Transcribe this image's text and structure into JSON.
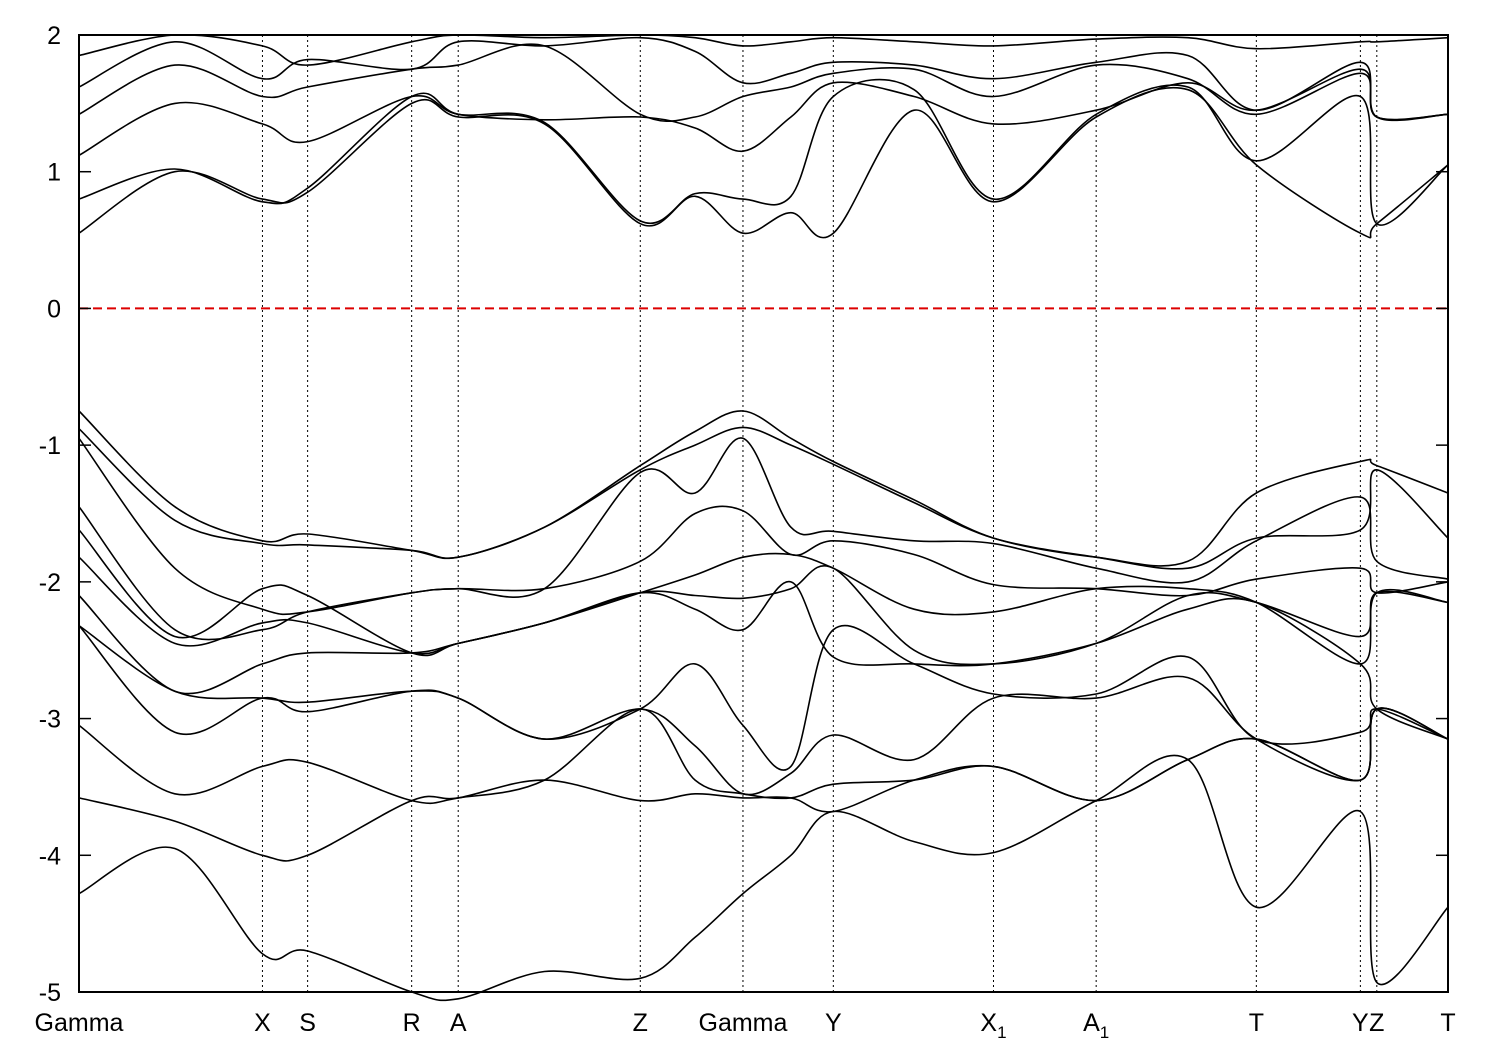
{
  "chart_data": {
    "type": "line",
    "title": "",
    "xlabel": "",
    "ylabel": "",
    "ylim": [
      -5,
      2
    ],
    "yticks": [
      -5,
      -4,
      -3,
      -2,
      -1,
      0,
      1,
      2
    ],
    "grid": "vertical dotted lines at high-symmetry points",
    "fermi_level": {
      "y": 0,
      "color": "#dd0000",
      "style": "dashed"
    },
    "line_color": "#000000",
    "xlim": [
      0,
      100
    ],
    "kpoints": [
      {
        "label": "Gamma",
        "sub": "",
        "x": 0
      },
      {
        "label": "X",
        "sub": "",
        "x": 13.4
      },
      {
        "label": "S",
        "sub": "",
        "x": 16.7
      },
      {
        "label": "R",
        "sub": "",
        "x": 24.3
      },
      {
        "label": "A",
        "sub": "",
        "x": 27.7
      },
      {
        "label": "Z",
        "sub": "",
        "x": 41.0
      },
      {
        "label": "Gamma",
        "sub": "",
        "x": 48.5
      },
      {
        "label": "Y",
        "sub": "",
        "x": 55.1
      },
      {
        "label": "X",
        "sub": "1",
        "x": 66.8
      },
      {
        "label": "A",
        "sub": "1",
        "x": 74.3
      },
      {
        "label": "T",
        "sub": "",
        "x": 86.0
      },
      {
        "label": "Y",
        "sub": "",
        "x": 93.6
      },
      {
        "label": "Z",
        "sub": "",
        "x": 94.8
      },
      {
        "label": "T",
        "sub": "",
        "x": 100
      }
    ],
    "series": [
      {
        "x": [
          0,
          7,
          13.4,
          16.7,
          24.3,
          27.7,
          34,
          41.0,
          45,
          48.5,
          52,
          55.1,
          61,
          66.8,
          74.3,
          81,
          86.0,
          93.6,
          94.8,
          100
        ],
        "y": [
          0.55,
          1.0,
          0.8,
          0.85,
          1.5,
          1.4,
          1.35,
          0.62,
          0.82,
          0.55,
          0.7,
          0.55,
          1.45,
          0.78,
          1.4,
          1.6,
          1.05,
          0.55,
          0.62,
          1.05
        ]
      },
      {
        "x": [
          0,
          7,
          13.4,
          16.7,
          24.3,
          27.7,
          34,
          41.0,
          45,
          48.5,
          52,
          55.1,
          61,
          66.8,
          74.3,
          81,
          86.0,
          93.6,
          94.8,
          100
        ],
        "y": [
          0.8,
          1.02,
          0.78,
          0.88,
          1.55,
          1.42,
          1.36,
          0.64,
          0.84,
          0.8,
          0.82,
          1.55,
          1.6,
          0.8,
          1.42,
          1.62,
          1.08,
          1.55,
          0.62,
          1.05
        ]
      },
      {
        "x": [
          0,
          7,
          13.4,
          16.7,
          24.3,
          27.7,
          34,
          41.0,
          45,
          48.5,
          52,
          55.1,
          61,
          66.8,
          74.3,
          81,
          86.0,
          93.6,
          94.8,
          100
        ],
        "y": [
          1.12,
          1.5,
          1.35,
          1.22,
          1.55,
          1.42,
          1.38,
          1.4,
          1.32,
          1.15,
          1.4,
          1.65,
          1.55,
          1.35,
          1.45,
          1.65,
          1.45,
          1.75,
          1.4,
          1.42
        ]
      },
      {
        "x": [
          0,
          7,
          13.4,
          16.7,
          24.3,
          27.7,
          34,
          41.0,
          45,
          48.5,
          52,
          55.1,
          61,
          66.8,
          74.3,
          81,
          86.0,
          93.6,
          94.8,
          100
        ],
        "y": [
          1.42,
          1.78,
          1.55,
          1.62,
          1.75,
          1.78,
          1.92,
          1.42,
          1.4,
          1.55,
          1.62,
          1.72,
          1.75,
          1.55,
          1.78,
          1.68,
          1.42,
          1.72,
          1.4,
          1.42
        ]
      },
      {
        "x": [
          0,
          7,
          13.4,
          16.7,
          24.3,
          27.7,
          34,
          41.0,
          45,
          48.5,
          52,
          55.1,
          61,
          66.8,
          74.3,
          81,
          86.0,
          93.6,
          94.8,
          100
        ],
        "y": [
          1.62,
          1.95,
          1.68,
          1.82,
          1.75,
          1.95,
          1.92,
          1.98,
          1.88,
          1.65,
          1.72,
          1.8,
          1.78,
          1.68,
          1.8,
          1.85,
          1.45,
          1.8,
          1.4,
          1.42
        ]
      },
      {
        "x": [
          0,
          7,
          13.4,
          16.7,
          24.3,
          27.7,
          34,
          41.0,
          45,
          48.5,
          52,
          55.1,
          61,
          66.8,
          74.3,
          81,
          86.0,
          93.6,
          94.8,
          100
        ],
        "y": [
          1.85,
          2.0,
          1.92,
          1.78,
          1.95,
          2.0,
          1.98,
          2.0,
          1.98,
          1.92,
          1.95,
          1.98,
          1.95,
          1.92,
          1.97,
          1.98,
          1.9,
          1.95,
          1.95,
          1.98
        ]
      },
      {
        "x": [
          0,
          7,
          13.4,
          16.7,
          24.3,
          27.7,
          34,
          41.0,
          45,
          48.5,
          52,
          55.1,
          61,
          66.8,
          74.3,
          81,
          86.0,
          93.6,
          94.8,
          100
        ],
        "y": [
          -0.75,
          -1.45,
          -1.7,
          -1.65,
          -1.77,
          -1.82,
          -1.6,
          -1.15,
          -0.9,
          -0.75,
          -0.95,
          -1.12,
          -1.4,
          -1.68,
          -1.82,
          -1.85,
          -1.35,
          -1.12,
          -1.15,
          -1.35
        ]
      },
      {
        "x": [
          0,
          7,
          13.4,
          16.7,
          24.3,
          27.7,
          34,
          41.0,
          45,
          48.5,
          52,
          55.1,
          61,
          66.8,
          74.3,
          81,
          86.0,
          93.6,
          94.8,
          100
        ],
        "y": [
          -0.88,
          -1.55,
          -1.72,
          -1.73,
          -1.77,
          -1.82,
          -1.6,
          -1.18,
          -1.0,
          -0.87,
          -1.0,
          -1.14,
          -1.42,
          -1.68,
          -1.82,
          -1.9,
          -1.68,
          -1.62,
          -1.18,
          -1.68
        ]
      },
      {
        "x": [
          0,
          7,
          13.4,
          16.7,
          24.3,
          27.7,
          34,
          41.0,
          45,
          48.5,
          52,
          55.1,
          61,
          66.8,
          74.3,
          81,
          86.0,
          93.6,
          94.8,
          100
        ],
        "y": [
          -0.95,
          -1.9,
          -2.2,
          -2.22,
          -2.08,
          -2.05,
          -2.05,
          -1.2,
          -1.35,
          -0.95,
          -1.6,
          -1.63,
          -1.7,
          -1.72,
          -1.9,
          -2.0,
          -1.7,
          -1.38,
          -1.85,
          -1.98
        ]
      },
      {
        "x": [
          0,
          7,
          13.4,
          16.7,
          24.3,
          27.7,
          34,
          41.0,
          45,
          48.5,
          52,
          55.1,
          61,
          66.8,
          74.3,
          81,
          86.0,
          93.6,
          94.8,
          100
        ],
        "y": [
          -1.45,
          -2.35,
          -2.35,
          -2.22,
          -2.08,
          -2.05,
          -2.05,
          -1.85,
          -1.5,
          -1.48,
          -1.8,
          -1.7,
          -1.8,
          -2.02,
          -2.05,
          -2.1,
          -1.98,
          -1.9,
          -2.08,
          -2.0
        ]
      },
      {
        "x": [
          0,
          7,
          13.4,
          16.7,
          24.3,
          27.7,
          34,
          41.0,
          45,
          48.5,
          52,
          55.1,
          61,
          66.8,
          74.3,
          81,
          86.0,
          93.6,
          94.8,
          100
        ],
        "y": [
          -1.62,
          -2.4,
          -2.05,
          -2.1,
          -2.52,
          -2.45,
          -2.3,
          -2.08,
          -1.95,
          -1.82,
          -1.8,
          -1.9,
          -2.2,
          -2.22,
          -2.05,
          -2.05,
          -2.15,
          -2.6,
          -2.08,
          -2.15
        ]
      },
      {
        "x": [
          0,
          7,
          13.4,
          16.7,
          24.3,
          27.7,
          34,
          41.0,
          45,
          48.5,
          52,
          55.1,
          61,
          66.8,
          74.3,
          81,
          86.0,
          93.6,
          94.8,
          100
        ],
        "y": [
          -1.82,
          -2.45,
          -2.3,
          -2.3,
          -2.52,
          -2.45,
          -2.3,
          -2.08,
          -2.1,
          -2.12,
          -2.05,
          -1.9,
          -2.5,
          -2.6,
          -2.45,
          -2.1,
          -2.15,
          -2.4,
          -2.08,
          -2.15
        ]
      },
      {
        "x": [
          0,
          7,
          13.4,
          16.7,
          24.3,
          27.7,
          34,
          41.0,
          45,
          48.5,
          52,
          55.1,
          61,
          66.8,
          74.3,
          81,
          86.0,
          93.6,
          94.8,
          100
        ],
        "y": [
          -2.1,
          -2.8,
          -2.6,
          -2.52,
          -2.52,
          -2.45,
          -2.3,
          -2.08,
          -2.2,
          -2.35,
          -2.0,
          -2.55,
          -2.6,
          -2.6,
          -2.45,
          -2.2,
          -2.15,
          -2.6,
          -2.93,
          -3.15
        ]
      },
      {
        "x": [
          0,
          7,
          13.4,
          16.7,
          24.3,
          27.7,
          34,
          41.0,
          45,
          48.5,
          52,
          55.1,
          61,
          66.8,
          74.3,
          81,
          86.0,
          93.6,
          94.8,
          100
        ],
        "y": [
          -2.32,
          -2.8,
          -2.85,
          -2.88,
          -2.8,
          -2.85,
          -3.15,
          -2.93,
          -2.6,
          -3.05,
          -3.35,
          -2.35,
          -2.6,
          -2.82,
          -2.82,
          -2.55,
          -3.15,
          -3.1,
          -2.93,
          -3.15
        ]
      },
      {
        "x": [
          0,
          7,
          13.4,
          16.7,
          24.3,
          27.7,
          34,
          41.0,
          45,
          48.5,
          52,
          55.1,
          61,
          66.8,
          74.3,
          81,
          86.0,
          93.6,
          94.8,
          100
        ],
        "y": [
          -2.32,
          -3.1,
          -2.85,
          -2.95,
          -2.8,
          -2.85,
          -3.15,
          -2.93,
          -3.2,
          -3.55,
          -3.4,
          -3.12,
          -3.3,
          -2.85,
          -2.85,
          -2.7,
          -3.15,
          -3.45,
          -2.93,
          -3.15
        ]
      },
      {
        "x": [
          0,
          7,
          13.4,
          16.7,
          24.3,
          27.7,
          34,
          41.0,
          45,
          48.5,
          52,
          55.1,
          61,
          66.8,
          74.3,
          81,
          86.0,
          93.6,
          94.8,
          100
        ],
        "y": [
          -3.05,
          -3.55,
          -3.35,
          -3.32,
          -3.6,
          -3.58,
          -3.45,
          -2.93,
          -3.45,
          -3.55,
          -3.58,
          -3.48,
          -3.45,
          -3.35,
          -3.6,
          -3.3,
          -3.15,
          -3.45,
          -2.93,
          -3.15
        ]
      },
      {
        "x": [
          0,
          7,
          13.4,
          16.7,
          24.3,
          27.7,
          34,
          41.0,
          45,
          48.5,
          52,
          55.1,
          61,
          66.8,
          74.3,
          81,
          86.0,
          93.6,
          94.8,
          100
        ],
        "y": [
          -3.58,
          -3.75,
          -4.0,
          -4.0,
          -3.6,
          -3.58,
          -3.45,
          -3.6,
          -3.55,
          -3.58,
          -3.58,
          -3.68,
          -3.45,
          -3.35,
          -3.6,
          -3.3,
          -3.15,
          -3.45,
          -2.93,
          -3.15
        ]
      },
      {
        "x": [
          0,
          7,
          13.4,
          16.7,
          24.3,
          27.7,
          34,
          41.0,
          45,
          48.5,
          52,
          55.1,
          61,
          66.8,
          74.3,
          81,
          86.0,
          93.6,
          94.8,
          100
        ],
        "y": [
          -4.28,
          -3.95,
          -4.72,
          -4.7,
          -5.0,
          -5.05,
          -4.85,
          -4.9,
          -4.6,
          -4.28,
          -4.0,
          -3.68,
          -3.9,
          -3.98,
          -3.6,
          -3.3,
          -4.38,
          -3.68,
          -4.93,
          -4.38
        ]
      }
    ]
  }
}
